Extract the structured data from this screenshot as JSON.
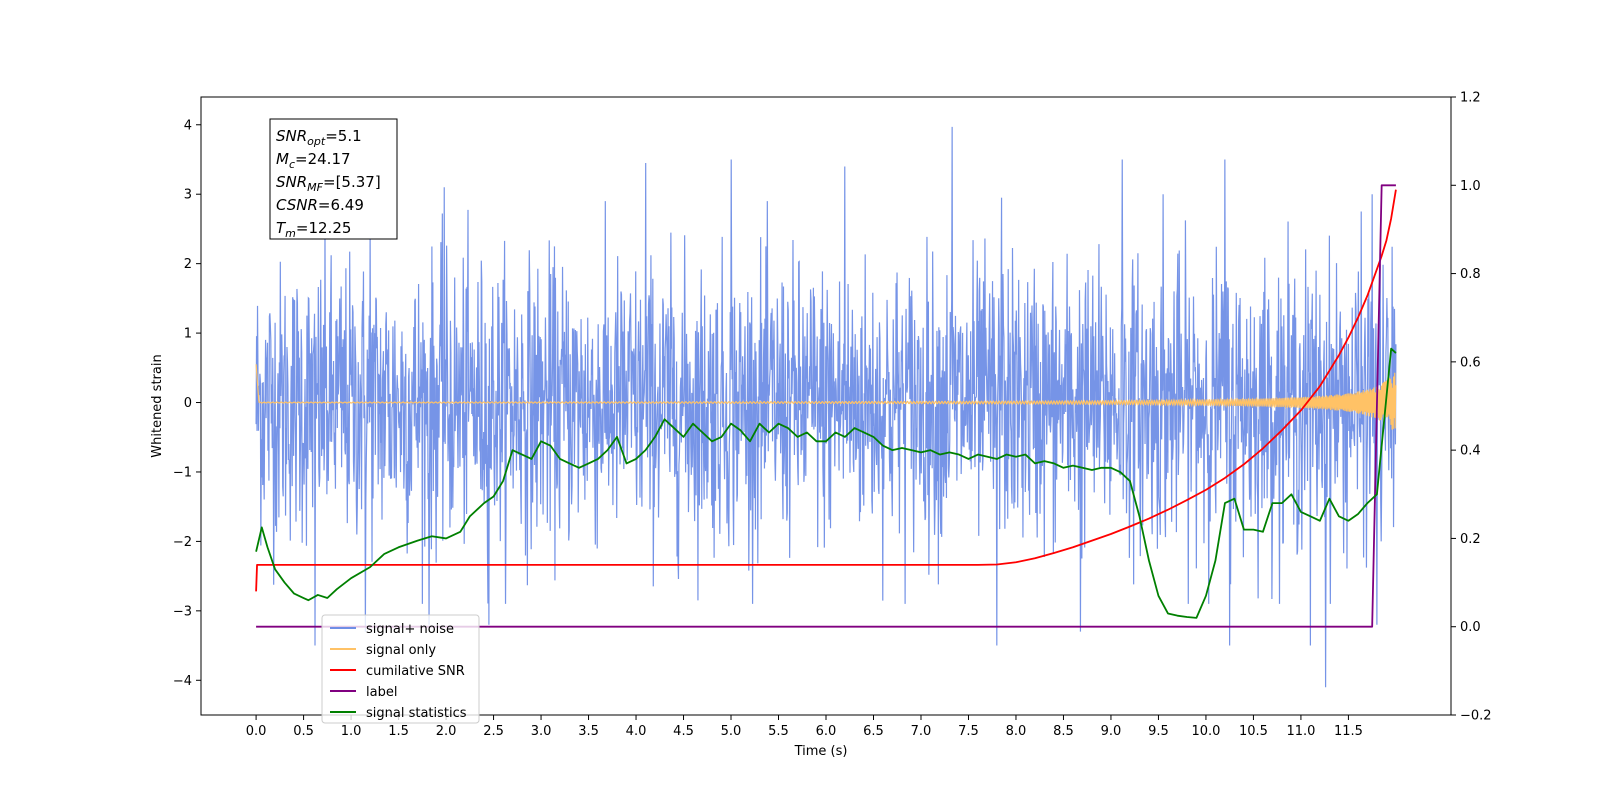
{
  "chart_data": {
    "type": "line",
    "xlabel": "Time (s)",
    "ylabel_left": "Whitened strain",
    "xlim": [
      -0.58,
      12.58
    ],
    "ylim_left": [
      -4.5,
      4.4
    ],
    "ylim_right": [
      -0.2,
      1.2
    ],
    "x_ticks": [
      "0.0",
      "0.5",
      "1.0",
      "1.5",
      "2.0",
      "2.5",
      "3.0",
      "3.5",
      "4.0",
      "4.5",
      "5.0",
      "5.5",
      "6.0",
      "6.5",
      "7.0",
      "7.5",
      "8.0",
      "8.5",
      "9.0",
      "9.5",
      "10.0",
      "10.5",
      "11.0",
      "11.5"
    ],
    "y_ticks_left": [
      "4",
      "3",
      "2",
      "1",
      "0",
      "−1",
      "−2",
      "−3",
      "−4"
    ],
    "y_ticks_right": [
      "1.2",
      "1.0",
      "0.8",
      "0.6",
      "0.4",
      "0.2",
      "0.0",
      "−0.2"
    ],
    "info_box": [
      {
        "var": "SNR",
        "sub": "opt",
        "value": "=5.1"
      },
      {
        "var": "M",
        "sub": "c",
        "value": "=24.17"
      },
      {
        "var": "SNR",
        "sub": "MF",
        "value": "=[5.37]"
      },
      {
        "var": "CSNR",
        "sub": "",
        "value": "=6.49"
      },
      {
        "var": "T",
        "sub": "m",
        "value": "=12.25"
      }
    ],
    "legend": {
      "placement": "lower-left",
      "entries": [
        {
          "label": "signal+ noise",
          "color": "#6f8ee6"
        },
        {
          "label": "signal only",
          "color": "#ffc266"
        },
        {
          "label": "cumilative SNR",
          "color": "#ff0000"
        },
        {
          "label": "label",
          "color": "#800080"
        },
        {
          "label": "signal statistics",
          "color": "#008000"
        }
      ]
    },
    "series": [
      {
        "name": "signal+ noise",
        "axis": "left",
        "color": "#6f8ee6",
        "x_range": [
          0.0,
          12.0
        ],
        "noise_sigma": 1.0,
        "peaks": [
          [
            1.2,
            2.5
          ],
          [
            1.98,
            3.1
          ],
          [
            4.1,
            3.45
          ],
          [
            5.0,
            3.5
          ],
          [
            6.2,
            3.4
          ],
          [
            7.33,
            3.97
          ],
          [
            7.85,
            2.95
          ],
          [
            9.12,
            3.5
          ],
          [
            9.55,
            3.0
          ],
          [
            10.2,
            3.5
          ],
          [
            11.75,
            3.0
          ]
        ],
        "troughs": [
          [
            0.62,
            -3.5
          ],
          [
            1.15,
            -3.3
          ],
          [
            1.82,
            -3.2
          ],
          [
            2.45,
            -3.2
          ],
          [
            7.8,
            -3.5
          ],
          [
            8.68,
            -3.3
          ],
          [
            10.25,
            -3.5
          ],
          [
            11.1,
            -3.5
          ],
          [
            11.26,
            -4.1
          ],
          [
            11.8,
            -3.2
          ]
        ]
      },
      {
        "name": "signal only",
        "axis": "left",
        "color": "#ffc266",
        "x_range": [
          0.0,
          12.0
        ],
        "t_merger": 12.25,
        "max_amplitude": 0.55
      },
      {
        "name": "cumilative SNR",
        "axis": "right",
        "color": "#ff0000",
        "x": [
          0.0,
          0.01,
          7.6,
          7.8,
          8.0,
          8.2,
          8.4,
          8.6,
          8.8,
          9.0,
          9.2,
          9.4,
          9.6,
          9.8,
          10.0,
          10.2,
          10.4,
          10.6,
          10.8,
          11.0,
          11.2,
          11.4,
          11.5,
          11.6,
          11.7,
          11.8,
          11.85,
          11.9,
          11.95,
          12.0
        ],
        "y": [
          0.08,
          0.14,
          0.14,
          0.141,
          0.146,
          0.155,
          0.167,
          0.18,
          0.195,
          0.21,
          0.227,
          0.245,
          0.265,
          0.287,
          0.31,
          0.337,
          0.368,
          0.404,
          0.445,
          0.49,
          0.545,
          0.615,
          0.655,
          0.7,
          0.75,
          0.81,
          0.84,
          0.875,
          0.925,
          0.99
        ]
      },
      {
        "name": "label",
        "axis": "right",
        "color": "#800080",
        "x": [
          0.0,
          11.75,
          11.85,
          12.0
        ],
        "y": [
          0.0,
          0.0,
          1.0,
          1.0
        ]
      },
      {
        "name": "signal statistics",
        "axis": "right",
        "color": "#008000",
        "x": [
          0.0,
          0.06,
          0.12,
          0.2,
          0.3,
          0.4,
          0.5,
          0.55,
          0.65,
          0.75,
          0.85,
          1.0,
          1.2,
          1.35,
          1.5,
          1.7,
          1.85,
          2.0,
          2.15,
          2.25,
          2.35,
          2.4,
          2.5,
          2.6,
          2.7,
          2.8,
          2.9,
          3.0,
          3.1,
          3.2,
          3.3,
          3.4,
          3.5,
          3.6,
          3.7,
          3.8,
          3.9,
          4.0,
          4.1,
          4.2,
          4.3,
          4.4,
          4.5,
          4.6,
          4.7,
          4.8,
          4.9,
          5.0,
          5.1,
          5.2,
          5.3,
          5.4,
          5.5,
          5.6,
          5.7,
          5.8,
          5.9,
          6.0,
          6.1,
          6.2,
          6.3,
          6.4,
          6.5,
          6.6,
          6.7,
          6.8,
          6.9,
          7.0,
          7.1,
          7.2,
          7.3,
          7.4,
          7.5,
          7.6,
          7.7,
          7.8,
          7.9,
          8.0,
          8.1,
          8.2,
          8.3,
          8.4,
          8.5,
          8.6,
          8.7,
          8.8,
          8.9,
          9.0,
          9.1,
          9.2,
          9.3,
          9.4,
          9.5,
          9.6,
          9.7,
          9.8,
          9.9,
          10.0,
          10.1,
          10.2,
          10.3,
          10.4,
          10.5,
          10.6,
          10.7,
          10.8,
          10.9,
          11.0,
          11.1,
          11.2,
          11.3,
          11.4,
          11.5,
          11.6,
          11.7,
          11.8,
          11.9,
          11.95,
          12.0
        ],
        "y": [
          0.17,
          0.225,
          0.18,
          0.13,
          0.1,
          0.075,
          0.065,
          0.06,
          0.072,
          0.065,
          0.085,
          0.11,
          0.135,
          0.165,
          0.18,
          0.195,
          0.205,
          0.2,
          0.215,
          0.25,
          0.27,
          0.28,
          0.295,
          0.33,
          0.4,
          0.39,
          0.38,
          0.42,
          0.41,
          0.38,
          0.37,
          0.36,
          0.37,
          0.38,
          0.4,
          0.43,
          0.37,
          0.38,
          0.4,
          0.43,
          0.47,
          0.45,
          0.43,
          0.46,
          0.44,
          0.42,
          0.43,
          0.46,
          0.445,
          0.42,
          0.46,
          0.44,
          0.46,
          0.45,
          0.43,
          0.44,
          0.42,
          0.42,
          0.44,
          0.43,
          0.45,
          0.44,
          0.43,
          0.41,
          0.4,
          0.405,
          0.4,
          0.395,
          0.4,
          0.39,
          0.395,
          0.39,
          0.38,
          0.39,
          0.385,
          0.38,
          0.39,
          0.385,
          0.39,
          0.37,
          0.375,
          0.37,
          0.36,
          0.365,
          0.36,
          0.355,
          0.36,
          0.36,
          0.35,
          0.33,
          0.25,
          0.15,
          0.07,
          0.03,
          0.025,
          0.022,
          0.02,
          0.07,
          0.15,
          0.28,
          0.29,
          0.22,
          0.22,
          0.215,
          0.28,
          0.28,
          0.3,
          0.26,
          0.25,
          0.24,
          0.29,
          0.25,
          0.24,
          0.255,
          0.28,
          0.3,
          0.52,
          0.63,
          0.62
        ]
      }
    ]
  }
}
